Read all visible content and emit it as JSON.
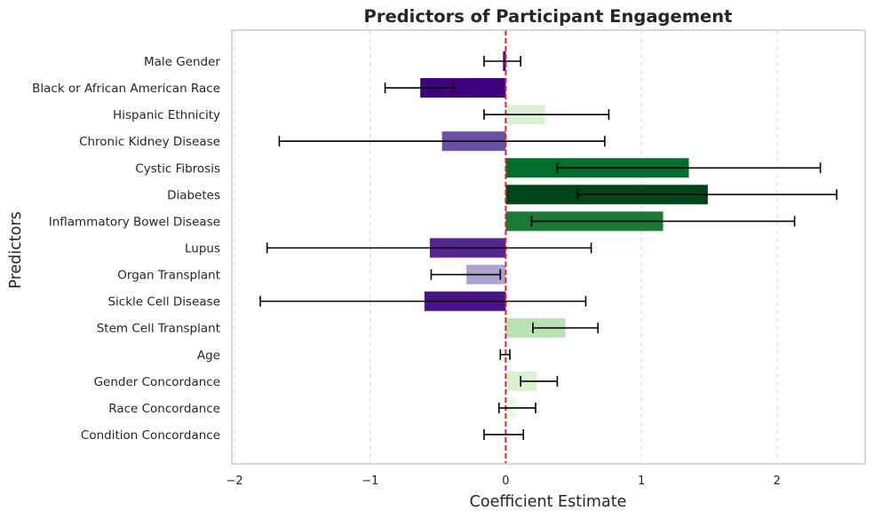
{
  "chart_data": {
    "type": "bar",
    "orientation": "horizontal",
    "title": "Predictors of Participant Engagement",
    "xlabel": "Coefficient Estimate",
    "ylabel": "Predictors",
    "xlim": [
      -2.02,
      2.65
    ],
    "xticks": [
      -2,
      -1,
      0,
      1,
      2
    ],
    "xtick_labels": [
      "−2",
      "−1",
      "0",
      "1",
      "2"
    ],
    "grid": "x-dashed",
    "reference_line": {
      "x": 0,
      "color": "#d62728",
      "style": "dashed"
    },
    "categories": [
      "Male Gender",
      "Black or African American Race",
      "Hispanic Ethnicity",
      "Chronic Kidney Disease",
      "Cystic Fibrosis",
      "Diabetes",
      "Inflammatory Bowel Disease",
      "Lupus",
      "Organ Transplant",
      "Sickle Cell Disease",
      "Stem Cell Transplant",
      "Age",
      "Gender Concordance",
      "Race Concordance",
      "Condition Concordance"
    ],
    "values": [
      -0.02,
      -0.63,
      0.29,
      -0.47,
      1.35,
      1.49,
      1.16,
      -0.56,
      -0.29,
      -0.6,
      0.44,
      -0.01,
      0.23,
      0.08,
      -0.01
    ],
    "ci_lower": [
      -0.16,
      -0.89,
      -0.16,
      -1.67,
      0.38,
      0.53,
      0.19,
      -1.76,
      -0.55,
      -1.81,
      0.2,
      -0.04,
      0.11,
      -0.05,
      -0.16
    ],
    "ci_upper": [
      0.11,
      -0.38,
      0.76,
      0.73,
      2.32,
      2.44,
      2.13,
      0.63,
      -0.04,
      0.59,
      0.68,
      0.03,
      0.38,
      0.22,
      0.13
    ],
    "colors": [
      "#3f007d",
      "#3f007d",
      "#d9f0d3",
      "#6a51a3",
      "#006d2c",
      "#00441b",
      "#1b7837",
      "#54278f",
      "#a9a4d0",
      "#4a1486",
      "#b8e2b1",
      "#f2eaf7",
      "#d9f0d3",
      "#edf8e9",
      "#f7f4f9"
    ]
  }
}
